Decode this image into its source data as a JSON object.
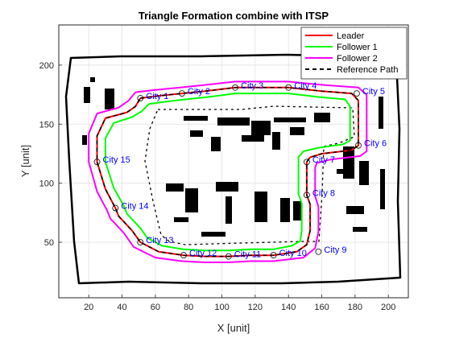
{
  "chart_data": {
    "type": "line",
    "title": "Triangle Formation combine with ITSP",
    "xlabel": "X [unit]",
    "ylabel": "Y [unit]",
    "xlim": [
      2,
      212
    ],
    "ylim": [
      3,
      234
    ],
    "xticks": [
      20,
      40,
      60,
      80,
      100,
      120,
      140,
      160,
      180,
      200
    ],
    "yticks": [
      50,
      100,
      150,
      200
    ],
    "grid": true,
    "legend_position": "top-right",
    "legend": [
      {
        "name": "Leader",
        "color": "#ff0000",
        "dash": "solid"
      },
      {
        "name": "Follower 1",
        "color": "#00ff00",
        "dash": "solid"
      },
      {
        "name": "Follower 2",
        "color": "#ff00ff",
        "dash": "solid"
      },
      {
        "name": "Reference Path",
        "color": "#000000",
        "dash": "dashed"
      }
    ],
    "cities": [
      {
        "label": "City 1",
        "x": 51,
        "y": 172
      },
      {
        "label": "City 2",
        "x": 76,
        "y": 176
      },
      {
        "label": "City 3",
        "x": 108,
        "y": 181
      },
      {
        "label": "City 4",
        "x": 140,
        "y": 181
      },
      {
        "label": "City 5",
        "x": 181,
        "y": 176
      },
      {
        "label": "City 6",
        "x": 182,
        "y": 132
      },
      {
        "label": "City 7",
        "x": 151,
        "y": 118
      },
      {
        "label": "City 8",
        "x": 151,
        "y": 90
      },
      {
        "label": "City 9",
        "x": 158,
        "y": 42
      },
      {
        "label": "City 10",
        "x": 131,
        "y": 39
      },
      {
        "label": "City 11",
        "x": 104,
        "y": 38
      },
      {
        "label": "City 12",
        "x": 77,
        "y": 39
      },
      {
        "label": "City 13",
        "x": 51,
        "y": 50
      },
      {
        "label": "City 14",
        "x": 36,
        "y": 79
      },
      {
        "label": "City 15",
        "x": 25,
        "y": 118
      }
    ],
    "series": [
      {
        "name": "Reference Path",
        "x": [
          51,
          62,
          76,
          90,
          108,
          125,
          140,
          160,
          178,
          182,
          182,
          178,
          160,
          153,
          151,
          151,
          153,
          153,
          151,
          145,
          131,
          117,
          104,
          90,
          77,
          62,
          51,
          46,
          38,
          36,
          30,
          25,
          25,
          30,
          43,
          48,
          51
        ],
        "y": [
          172,
          174,
          176,
          178,
          181,
          181,
          181,
          178,
          176,
          170,
          132,
          128,
          125,
          122,
          118,
          90,
          82,
          60,
          48,
          42,
          39,
          39,
          38,
          38,
          39,
          42,
          50,
          60,
          72,
          79,
          95,
          118,
          140,
          155,
          160,
          165,
          172
        ]
      },
      {
        "name": "Leader",
        "x": [
          51,
          62,
          76,
          90,
          108,
          125,
          140,
          160,
          178,
          182,
          182,
          178,
          160,
          153,
          151,
          151,
          153,
          153,
          151,
          145,
          131,
          117,
          104,
          90,
          77,
          62,
          51,
          46,
          38,
          36,
          30,
          25,
          25,
          30,
          43,
          48,
          51
        ],
        "y": [
          172,
          174,
          176,
          178,
          181,
          181,
          181,
          178,
          176,
          170,
          132,
          128,
          125,
          122,
          118,
          90,
          82,
          60,
          48,
          42,
          39,
          39,
          38,
          38,
          39,
          42,
          50,
          60,
          72,
          79,
          95,
          118,
          140,
          155,
          160,
          165,
          172
        ]
      },
      {
        "name": "Follower 1",
        "x": [
          56,
          66,
          78,
          92,
          108,
          125,
          140,
          158,
          174,
          177,
          177,
          173,
          158,
          149,
          146,
          146,
          148,
          148,
          147,
          142,
          131,
          117,
          104,
          90,
          77,
          64,
          55,
          51,
          43,
          41,
          35,
          30,
          30,
          35,
          46,
          52,
          56
        ],
        "y": [
          167,
          169,
          171,
          173,
          176,
          176,
          176,
          173,
          171,
          165,
          136,
          133,
          130,
          127,
          122,
          91,
          83,
          60,
          51,
          47,
          44,
          44,
          43,
          43,
          44,
          47,
          54,
          62,
          74,
          81,
          96,
          118,
          138,
          151,
          156,
          161,
          167
        ]
      },
      {
        "name": "Follower 2",
        "x": [
          48,
          60,
          75,
          89,
          108,
          125,
          140,
          162,
          182,
          187,
          187,
          183,
          165,
          157,
          156,
          156,
          158,
          158,
          156,
          149,
          131,
          117,
          104,
          90,
          76,
          60,
          47,
          41,
          33,
          31,
          25,
          20,
          20,
          25,
          38,
          44,
          48
        ],
        "y": [
          177,
          179,
          181,
          183,
          186,
          186,
          186,
          183,
          181,
          175,
          127,
          123,
          120,
          117,
          113,
          89,
          80,
          59,
          45,
          37,
          34,
          34,
          33,
          33,
          34,
          37,
          46,
          58,
          70,
          77,
          93,
          118,
          142,
          159,
          164,
          170,
          177
        ]
      }
    ]
  }
}
